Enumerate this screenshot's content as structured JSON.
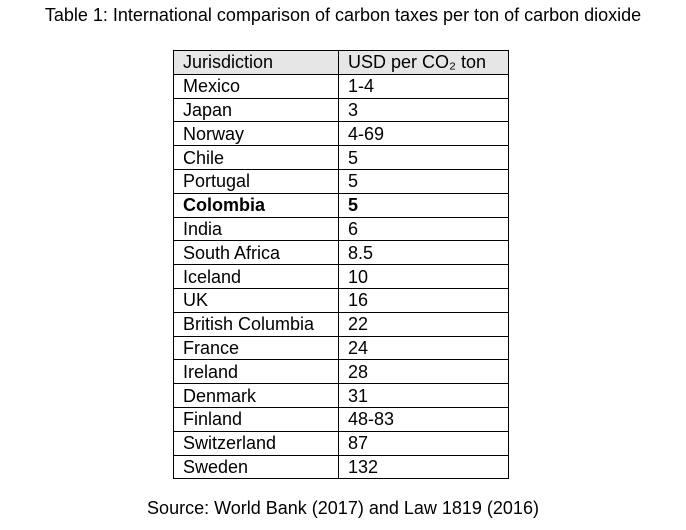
{
  "title": "Table 1: International comparison of carbon taxes per ton of carbon dioxide",
  "table": {
    "header": [
      "Jurisdiction",
      "USD per CO₂ ton"
    ],
    "rows": [
      [
        "Mexico",
        "1-4"
      ],
      [
        "Japan",
        "3"
      ],
      [
        "Norway",
        "4-69"
      ],
      [
        "Chile",
        "5"
      ],
      [
        "Portugal",
        "5"
      ],
      [
        "Colombia",
        "5"
      ],
      [
        "India",
        "6"
      ],
      [
        "South Africa",
        "8.5"
      ],
      [
        "Iceland",
        "10"
      ],
      [
        "UK",
        "16"
      ],
      [
        "British Columbia",
        "22"
      ],
      [
        "France",
        "24"
      ],
      [
        "Ireland",
        "28"
      ],
      [
        "Denmark",
        "31"
      ],
      [
        "Finland",
        "48-83"
      ],
      [
        "Switzerland",
        "87"
      ],
      [
        "Sweden",
        "132"
      ]
    ]
  },
  "source": "Source: World Bank (2017) and Law 1819 (2016)"
}
